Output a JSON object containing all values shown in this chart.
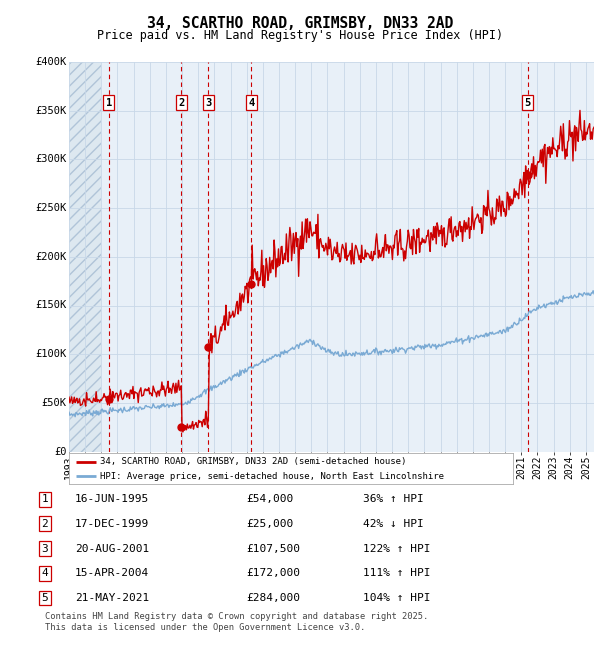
{
  "title": "34, SCARTHO ROAD, GRIMSBY, DN33 2AD",
  "subtitle": "Price paid vs. HM Land Registry's House Price Index (HPI)",
  "ylim": [
    0,
    400000
  ],
  "yticks": [
    0,
    50000,
    100000,
    150000,
    200000,
    250000,
    300000,
    350000,
    400000
  ],
  "ytick_labels": [
    "£0",
    "£50K",
    "£100K",
    "£150K",
    "£200K",
    "£250K",
    "£300K",
    "£350K",
    "£400K"
  ],
  "xlim_start": 1993.0,
  "xlim_end": 2025.5,
  "sale_dates_num": [
    1995.458,
    1999.958,
    2001.633,
    2004.292,
    2021.389
  ],
  "sale_prices": [
    54000,
    25000,
    107500,
    172000,
    284000
  ],
  "sale_labels": [
    "1",
    "2",
    "3",
    "4",
    "5"
  ],
  "sale_label_dates": [
    "16-JUN-1995",
    "17-DEC-1999",
    "20-AUG-2001",
    "15-APR-2004",
    "21-MAY-2021"
  ],
  "sale_label_prices": [
    "£54,000",
    "£25,000",
    "£107,500",
    "£172,000",
    "£284,000"
  ],
  "sale_label_pcts": [
    "36% ↑ HPI",
    "42% ↓ HPI",
    "122% ↑ HPI",
    "111% ↑ HPI",
    "104% ↑ HPI"
  ],
  "legend_line1": "34, SCARTHO ROAD, GRIMSBY, DN33 2AD (semi-detached house)",
  "legend_line2": "HPI: Average price, semi-detached house, North East Lincolnshire",
  "footer": "Contains HM Land Registry data © Crown copyright and database right 2025.\nThis data is licensed under the Open Government Licence v3.0.",
  "hpi_color": "#7aaad4",
  "price_color": "#cc0000",
  "hatch_region_color": "#dde8f0",
  "hatch_color": "#b0c4d8",
  "bg_color": "#e8f0f8",
  "grid_color": "#c8d8e8",
  "vline_color": "#cc0000",
  "background_color": "#ffffff",
  "hatch_end": 1995.0
}
